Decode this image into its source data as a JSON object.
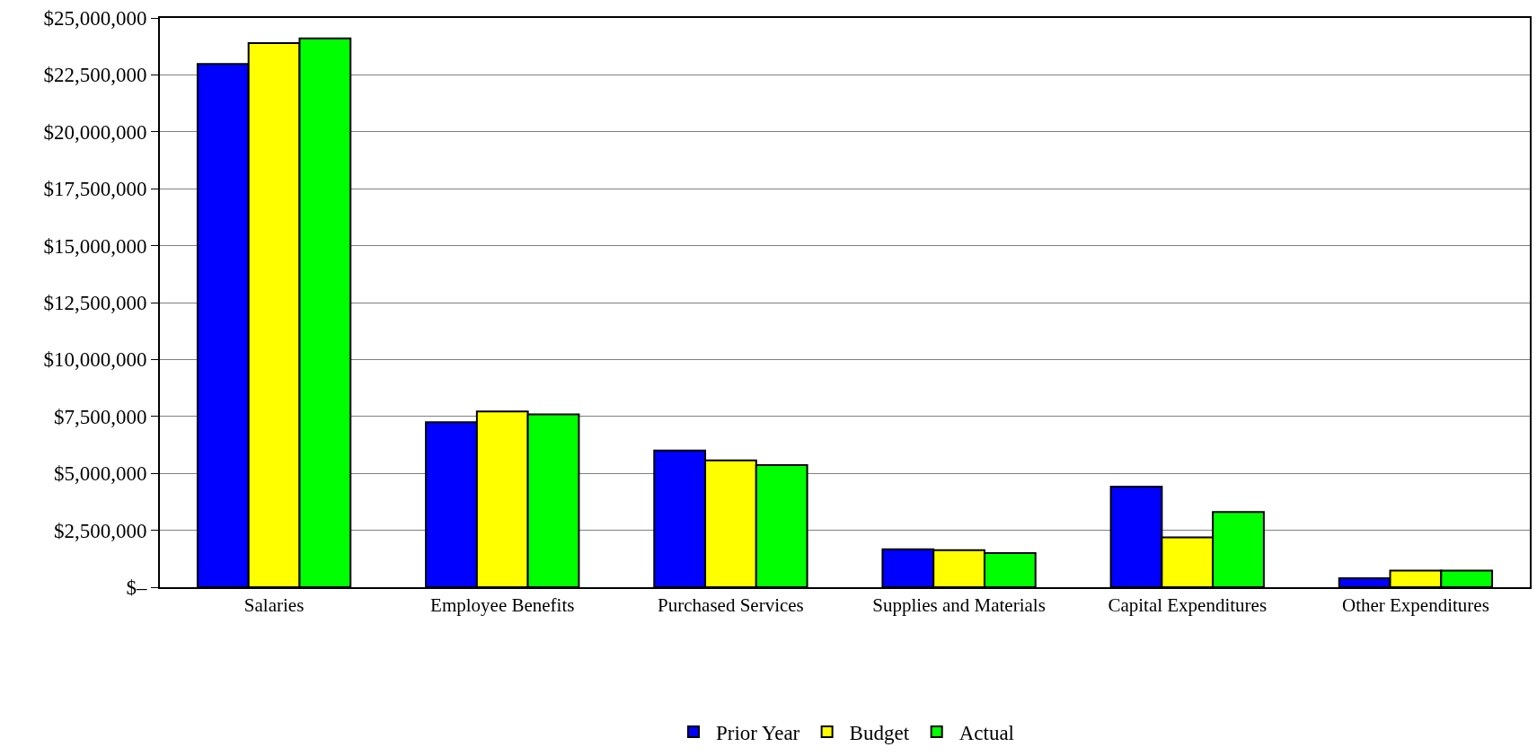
{
  "chart_data": {
    "type": "bar",
    "categories": [
      "Salaries",
      "Employee Benefits",
      "Purchased Services",
      "Supplies and Materials",
      "Capital Expenditures",
      "Other Expenditures"
    ],
    "series": [
      {
        "name": "Prior Year",
        "color": "#0000ff",
        "values": [
          22980000,
          7250000,
          6000000,
          1670000,
          4420000,
          390000
        ]
      },
      {
        "name": "Budget",
        "color": "#ffff00",
        "values": [
          23900000,
          7720000,
          5570000,
          1630000,
          2190000,
          730000
        ]
      },
      {
        "name": "Actual",
        "color": "#00ff00",
        "values": [
          24100000,
          7590000,
          5360000,
          1500000,
          3300000,
          730000
        ]
      }
    ],
    "ylim": [
      0,
      25000000
    ],
    "yticks": [
      {
        "value": 0,
        "label": "$–"
      },
      {
        "value": 2500000,
        "label": "$2,500,000"
      },
      {
        "value": 5000000,
        "label": "$5,000,000"
      },
      {
        "value": 7500000,
        "label": "$7,500,000"
      },
      {
        "value": 10000000,
        "label": "$10,000,000"
      },
      {
        "value": 12500000,
        "label": "$12,500,000"
      },
      {
        "value": 15000000,
        "label": "$15,000,000"
      },
      {
        "value": 17500000,
        "label": "$17,500,000"
      },
      {
        "value": 20000000,
        "label": "$20,000,000"
      },
      {
        "value": 22500000,
        "label": "$22,500,000"
      },
      {
        "value": 25000000,
        "label": "$25,000,000"
      }
    ],
    "grid": "y",
    "legend": "bottom"
  }
}
